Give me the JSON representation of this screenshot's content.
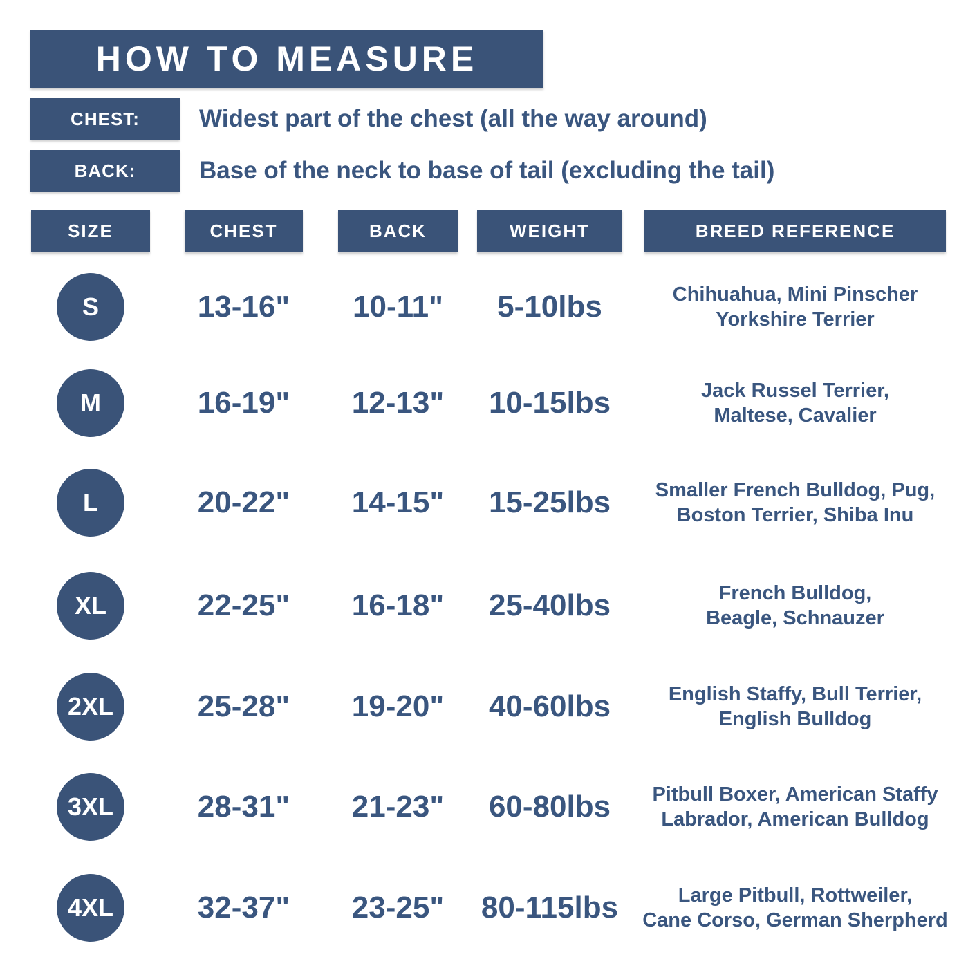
{
  "title": "HOW TO MEASURE",
  "measure_guide": {
    "chest_label": "CHEST:",
    "chest_description": "Widest part of the chest (all the way around)",
    "back_label": "BACK:",
    "back_description": "Base of the neck to base of tail (excluding the tail)"
  },
  "table": {
    "headers": [
      "SIZE",
      "CHEST",
      "BACK",
      "WEIGHT",
      "BREED REFERENCE"
    ],
    "rows": [
      {
        "size": "S",
        "chest": "13-16\"",
        "back": "10-11\"",
        "weight": "5-10lbs",
        "breeds": "Chihuahua, Mini Pinscher\nYorkshire Terrier"
      },
      {
        "size": "M",
        "chest": "16-19\"",
        "back": "12-13\"",
        "weight": "10-15lbs",
        "breeds": "Jack Russel Terrier,\nMaltese, Cavalier"
      },
      {
        "size": "L",
        "chest": "20-22\"",
        "back": "14-15\"",
        "weight": "15-25lbs",
        "breeds": "Smaller French Bulldog, Pug,\nBoston Terrier, Shiba Inu"
      },
      {
        "size": "XL",
        "chest": "22-25\"",
        "back": "16-18\"",
        "weight": "25-40lbs",
        "breeds": "French Bulldog,\nBeagle, Schnauzer"
      },
      {
        "size": "2XL",
        "chest": "25-28\"",
        "back": "19-20\"",
        "weight": "40-60lbs",
        "breeds": "English Staffy, Bull Terrier,\nEnglish Bulldog"
      },
      {
        "size": "3XL",
        "chest": "28-31\"",
        "back": "21-23\"",
        "weight": "60-80lbs",
        "breeds": "Pitbull Boxer, American Staffy\nLabrador, American Bulldog"
      },
      {
        "size": "4XL",
        "chest": "32-37\"",
        "back": "23-25\"",
        "weight": "80-115lbs",
        "breeds": "Large Pitbull, Rottweiler,\nCane Corso, German Sherpherd"
      }
    ]
  },
  "colors": {
    "accent_navy": "#3A5378",
    "text_navy": "#3A567F",
    "background": "#FFFFFF"
  }
}
